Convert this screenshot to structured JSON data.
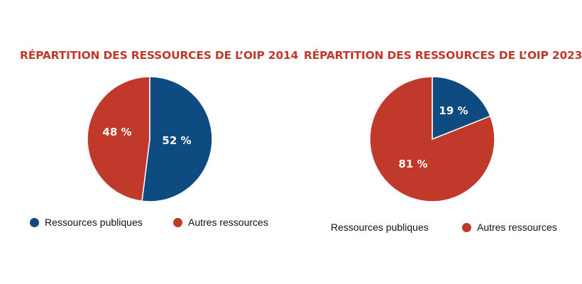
{
  "colors": {
    "public": "#0d4b80",
    "other": "#c0392b",
    "title": "#c0392b"
  },
  "chart_data": [
    {
      "type": "pie",
      "title": "RÉPARTITION DES RESSOURCES DE L’OIP 2014",
      "slices": [
        {
          "name": "Ressources publiques",
          "value": 52,
          "label": "52 %",
          "color": "#0d4b80"
        },
        {
          "name": "Autres ressources",
          "value": 48,
          "label": "48 %",
          "color": "#c0392b"
        }
      ],
      "legend": [
        {
          "label": "Ressources publiques",
          "color": "#0d4b80",
          "marker": true
        },
        {
          "label": "Autres ressources",
          "color": "#c0392b",
          "marker": true
        }
      ]
    },
    {
      "type": "pie",
      "title": "RÉPARTITION DES RESSOURCES DE L’OIP 2023",
      "slices": [
        {
          "name": "Ressources publiques",
          "value": 19,
          "label": "19 %",
          "color": "#0d4b80"
        },
        {
          "name": "Autres ressources",
          "value": 81,
          "label": "81 %",
          "color": "#c0392b"
        }
      ],
      "legend": [
        {
          "label": "Ressources publiques",
          "color": "#0d4b80",
          "marker": false
        },
        {
          "label": "Autres ressources",
          "color": "#c0392b",
          "marker": true
        }
      ]
    }
  ]
}
